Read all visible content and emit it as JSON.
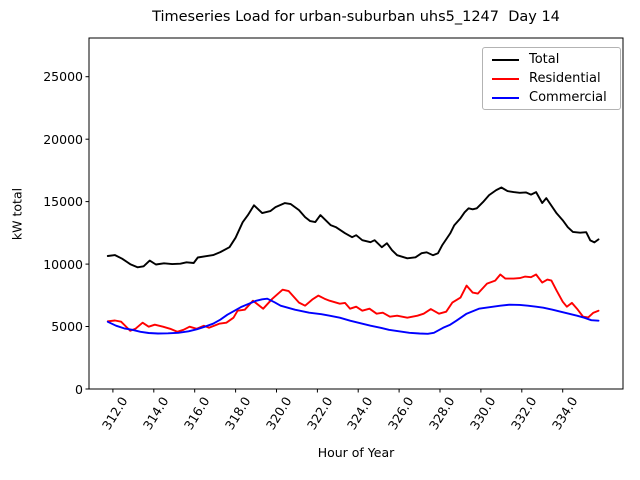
{
  "title": "Timeseries Load for urban-suburban uhs5_1247  Day 14",
  "chart_data": {
    "type": "line",
    "title": "Timeseries Load for urban-suburban uhs5_1247  Day 14",
    "xlabel": "Hour of Year",
    "ylabel": "kW total",
    "xlim": [
      310.83,
      336.95
    ],
    "ylim": [
      0,
      28100
    ],
    "grid": false,
    "xticks": {
      "values": [
        312,
        314,
        316,
        318,
        320,
        322,
        324,
        326,
        328,
        330,
        332,
        334
      ],
      "labels": [
        "312.0",
        "314.0",
        "316.0",
        "318.0",
        "320.0",
        "322.0",
        "324.0",
        "326.0",
        "328.0",
        "330.0",
        "332.0",
        "334.0"
      ]
    },
    "yticks": {
      "values": [
        0,
        5000,
        10000,
        15000,
        20000,
        25000
      ],
      "labels": [
        "0",
        "5000",
        "10000",
        "15000",
        "20000",
        "25000"
      ]
    },
    "legend": {
      "location": "upper right",
      "entries": [
        "Total",
        "Residential",
        "Commercial"
      ]
    },
    "series": [
      {
        "name": "Total",
        "color": "#000000",
        "points": [
          [
            311.75,
            10650
          ],
          [
            312.1,
            10720
          ],
          [
            312.45,
            10430
          ],
          [
            312.85,
            9990
          ],
          [
            313.2,
            9740
          ],
          [
            313.5,
            9820
          ],
          [
            313.8,
            10280
          ],
          [
            314.1,
            9970
          ],
          [
            314.5,
            10060
          ],
          [
            314.9,
            10000
          ],
          [
            315.3,
            10030
          ],
          [
            315.6,
            10140
          ],
          [
            315.95,
            10090
          ],
          [
            316.15,
            10530
          ],
          [
            316.55,
            10630
          ],
          [
            316.9,
            10720
          ],
          [
            317.25,
            10960
          ],
          [
            317.7,
            11350
          ],
          [
            318.0,
            12110
          ],
          [
            318.35,
            13350
          ],
          [
            318.6,
            13920
          ],
          [
            318.9,
            14710
          ],
          [
            319.3,
            14080
          ],
          [
            319.7,
            14240
          ],
          [
            319.95,
            14560
          ],
          [
            320.4,
            14880
          ],
          [
            320.7,
            14800
          ],
          [
            321.1,
            14320
          ],
          [
            321.4,
            13760
          ],
          [
            321.65,
            13440
          ],
          [
            321.9,
            13360
          ],
          [
            322.15,
            13920
          ],
          [
            322.4,
            13520
          ],
          [
            322.65,
            13120
          ],
          [
            322.9,
            12960
          ],
          [
            323.35,
            12470
          ],
          [
            323.7,
            12150
          ],
          [
            323.9,
            12310
          ],
          [
            324.2,
            11910
          ],
          [
            324.6,
            11750
          ],
          [
            324.8,
            11910
          ],
          [
            325.15,
            11350
          ],
          [
            325.4,
            11670
          ],
          [
            325.65,
            11110
          ],
          [
            325.9,
            10710
          ],
          [
            326.4,
            10460
          ],
          [
            326.8,
            10540
          ],
          [
            327.1,
            10870
          ],
          [
            327.35,
            10940
          ],
          [
            327.65,
            10710
          ],
          [
            327.9,
            10870
          ],
          [
            328.1,
            11500
          ],
          [
            328.5,
            12460
          ],
          [
            328.7,
            13110
          ],
          [
            329.0,
            13670
          ],
          [
            329.2,
            14150
          ],
          [
            329.4,
            14470
          ],
          [
            329.6,
            14390
          ],
          [
            329.8,
            14470
          ],
          [
            330.1,
            14960
          ],
          [
            330.4,
            15520
          ],
          [
            330.75,
            15920
          ],
          [
            331.0,
            16130
          ],
          [
            331.3,
            15840
          ],
          [
            331.6,
            15760
          ],
          [
            331.9,
            15710
          ],
          [
            332.2,
            15740
          ],
          [
            332.45,
            15560
          ],
          [
            332.7,
            15760
          ],
          [
            333.0,
            14890
          ],
          [
            333.2,
            15280
          ],
          [
            333.7,
            14070
          ],
          [
            334.0,
            13510
          ],
          [
            334.25,
            12950
          ],
          [
            334.5,
            12580
          ],
          [
            334.85,
            12510
          ],
          [
            335.15,
            12550
          ],
          [
            335.35,
            11900
          ],
          [
            335.55,
            11740
          ],
          [
            335.75,
            11980
          ]
        ]
      },
      {
        "name": "Residential",
        "color": "#ff0000",
        "points": [
          [
            311.75,
            5420
          ],
          [
            312.1,
            5480
          ],
          [
            312.4,
            5390
          ],
          [
            312.85,
            4660
          ],
          [
            313.1,
            4820
          ],
          [
            313.45,
            5310
          ],
          [
            313.75,
            4990
          ],
          [
            314.05,
            5150
          ],
          [
            314.45,
            4990
          ],
          [
            314.8,
            4820
          ],
          [
            315.15,
            4580
          ],
          [
            315.45,
            4740
          ],
          [
            315.75,
            4990
          ],
          [
            316.1,
            4820
          ],
          [
            316.45,
            5070
          ],
          [
            316.7,
            4900
          ],
          [
            317.2,
            5230
          ],
          [
            317.55,
            5310
          ],
          [
            317.9,
            5710
          ],
          [
            318.1,
            6270
          ],
          [
            318.45,
            6350
          ],
          [
            318.85,
            7070
          ],
          [
            319.35,
            6430
          ],
          [
            319.8,
            7230
          ],
          [
            320.3,
            7950
          ],
          [
            320.6,
            7840
          ],
          [
            321.1,
            6920
          ],
          [
            321.4,
            6670
          ],
          [
            321.75,
            7160
          ],
          [
            322.05,
            7480
          ],
          [
            322.35,
            7230
          ],
          [
            322.6,
            7070
          ],
          [
            323.1,
            6830
          ],
          [
            323.35,
            6890
          ],
          [
            323.6,
            6430
          ],
          [
            323.9,
            6590
          ],
          [
            324.2,
            6270
          ],
          [
            324.55,
            6430
          ],
          [
            324.9,
            6030
          ],
          [
            325.2,
            6110
          ],
          [
            325.55,
            5790
          ],
          [
            325.9,
            5870
          ],
          [
            326.4,
            5710
          ],
          [
            326.9,
            5870
          ],
          [
            327.2,
            6030
          ],
          [
            327.55,
            6400
          ],
          [
            327.95,
            6030
          ],
          [
            328.3,
            6190
          ],
          [
            328.6,
            6920
          ],
          [
            329.0,
            7320
          ],
          [
            329.3,
            8280
          ],
          [
            329.6,
            7720
          ],
          [
            329.85,
            7640
          ],
          [
            330.3,
            8440
          ],
          [
            330.7,
            8680
          ],
          [
            330.95,
            9170
          ],
          [
            331.2,
            8840
          ],
          [
            331.6,
            8840
          ],
          [
            331.9,
            8880
          ],
          [
            332.15,
            9000
          ],
          [
            332.45,
            8950
          ],
          [
            332.7,
            9170
          ],
          [
            333.0,
            8520
          ],
          [
            333.25,
            8760
          ],
          [
            333.45,
            8680
          ],
          [
            333.7,
            7880
          ],
          [
            334.0,
            6990
          ],
          [
            334.2,
            6590
          ],
          [
            334.45,
            6890
          ],
          [
            334.7,
            6430
          ],
          [
            335.0,
            5790
          ],
          [
            335.25,
            5730
          ],
          [
            335.5,
            6110
          ],
          [
            335.75,
            6270
          ]
        ]
      },
      {
        "name": "Commercial",
        "color": "#0000ff",
        "points": [
          [
            311.75,
            5380
          ],
          [
            312.15,
            5070
          ],
          [
            312.55,
            4850
          ],
          [
            312.95,
            4740
          ],
          [
            313.35,
            4580
          ],
          [
            313.75,
            4480
          ],
          [
            314.2,
            4440
          ],
          [
            314.7,
            4460
          ],
          [
            315.2,
            4500
          ],
          [
            315.7,
            4620
          ],
          [
            316.1,
            4780
          ],
          [
            316.5,
            4990
          ],
          [
            316.9,
            5230
          ],
          [
            317.25,
            5550
          ],
          [
            317.6,
            5950
          ],
          [
            317.95,
            6270
          ],
          [
            318.3,
            6590
          ],
          [
            318.65,
            6830
          ],
          [
            319.0,
            7060
          ],
          [
            319.3,
            7180
          ],
          [
            319.55,
            7230
          ],
          [
            319.9,
            6950
          ],
          [
            320.2,
            6670
          ],
          [
            320.9,
            6350
          ],
          [
            321.6,
            6110
          ],
          [
            322.2,
            5990
          ],
          [
            322.6,
            5870
          ],
          [
            323.1,
            5710
          ],
          [
            323.6,
            5470
          ],
          [
            324.2,
            5230
          ],
          [
            324.6,
            5070
          ],
          [
            325.1,
            4900
          ],
          [
            325.5,
            4740
          ],
          [
            326.0,
            4620
          ],
          [
            326.5,
            4500
          ],
          [
            327.0,
            4440
          ],
          [
            327.4,
            4420
          ],
          [
            327.7,
            4500
          ],
          [
            328.15,
            4900
          ],
          [
            328.5,
            5150
          ],
          [
            328.8,
            5470
          ],
          [
            329.3,
            6030
          ],
          [
            329.9,
            6430
          ],
          [
            330.6,
            6590
          ],
          [
            330.95,
            6670
          ],
          [
            331.4,
            6750
          ],
          [
            331.9,
            6730
          ],
          [
            332.3,
            6670
          ],
          [
            332.7,
            6590
          ],
          [
            333.05,
            6510
          ],
          [
            333.5,
            6350
          ],
          [
            333.9,
            6190
          ],
          [
            334.3,
            6030
          ],
          [
            334.7,
            5870
          ],
          [
            335.05,
            5710
          ],
          [
            335.4,
            5510
          ],
          [
            335.75,
            5470
          ]
        ]
      }
    ]
  }
}
